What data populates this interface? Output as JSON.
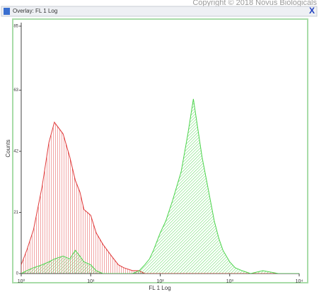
{
  "chart_data": {
    "type": "line",
    "title": "Overlay: FL 1 Log",
    "close_button": "X",
    "annotation": "Copyright © 2018 Novus Biologicals",
    "xlabel": "FL 1 Log",
    "ylabel": "Counts",
    "xscale": "log",
    "xlim": [
      1,
      10000
    ],
    "xticks": [
      {
        "value": 1,
        "label": "10⁰"
      },
      {
        "value": 10,
        "label": "10¹"
      },
      {
        "value": 100,
        "label": "10²"
      },
      {
        "value": 1000,
        "label": "10³"
      },
      {
        "value": 10000,
        "label": "10⁴"
      }
    ],
    "ylim": [
      0,
      85
    ],
    "yticks": [
      0,
      21,
      42,
      63,
      85
    ],
    "x": [
      1,
      1.2,
      1.5,
      2,
      2.5,
      3,
      4,
      5,
      6,
      7,
      8,
      10,
      12,
      15,
      20,
      25,
      30,
      40,
      50,
      60,
      70,
      80,
      100,
      120,
      150,
      200,
      250,
      300,
      400,
      500,
      600,
      700,
      800,
      1000,
      1200,
      1500,
      2000,
      3000,
      5000,
      10000
    ],
    "series": [
      {
        "color": "#e03a3a",
        "values": [
          3,
          8,
          15,
          30,
          45,
          52,
          48,
          40,
          32,
          28,
          22,
          20,
          14,
          10,
          6,
          3,
          2,
          1,
          1,
          0,
          0,
          0,
          0,
          0,
          0,
          0,
          0,
          0,
          0,
          0,
          0,
          0,
          0,
          0,
          0,
          0,
          0,
          0,
          0,
          0
        ]
      },
      {
        "color": "#4cd44c",
        "values": [
          0,
          1,
          2,
          3,
          4,
          5,
          6,
          5,
          8,
          6,
          4,
          3,
          1,
          0,
          0,
          0,
          0,
          0,
          1,
          3,
          5,
          8,
          14,
          18,
          25,
          35,
          48,
          60,
          40,
          28,
          18,
          12,
          8,
          4,
          2,
          1,
          0,
          1,
          0,
          0
        ]
      }
    ]
  }
}
